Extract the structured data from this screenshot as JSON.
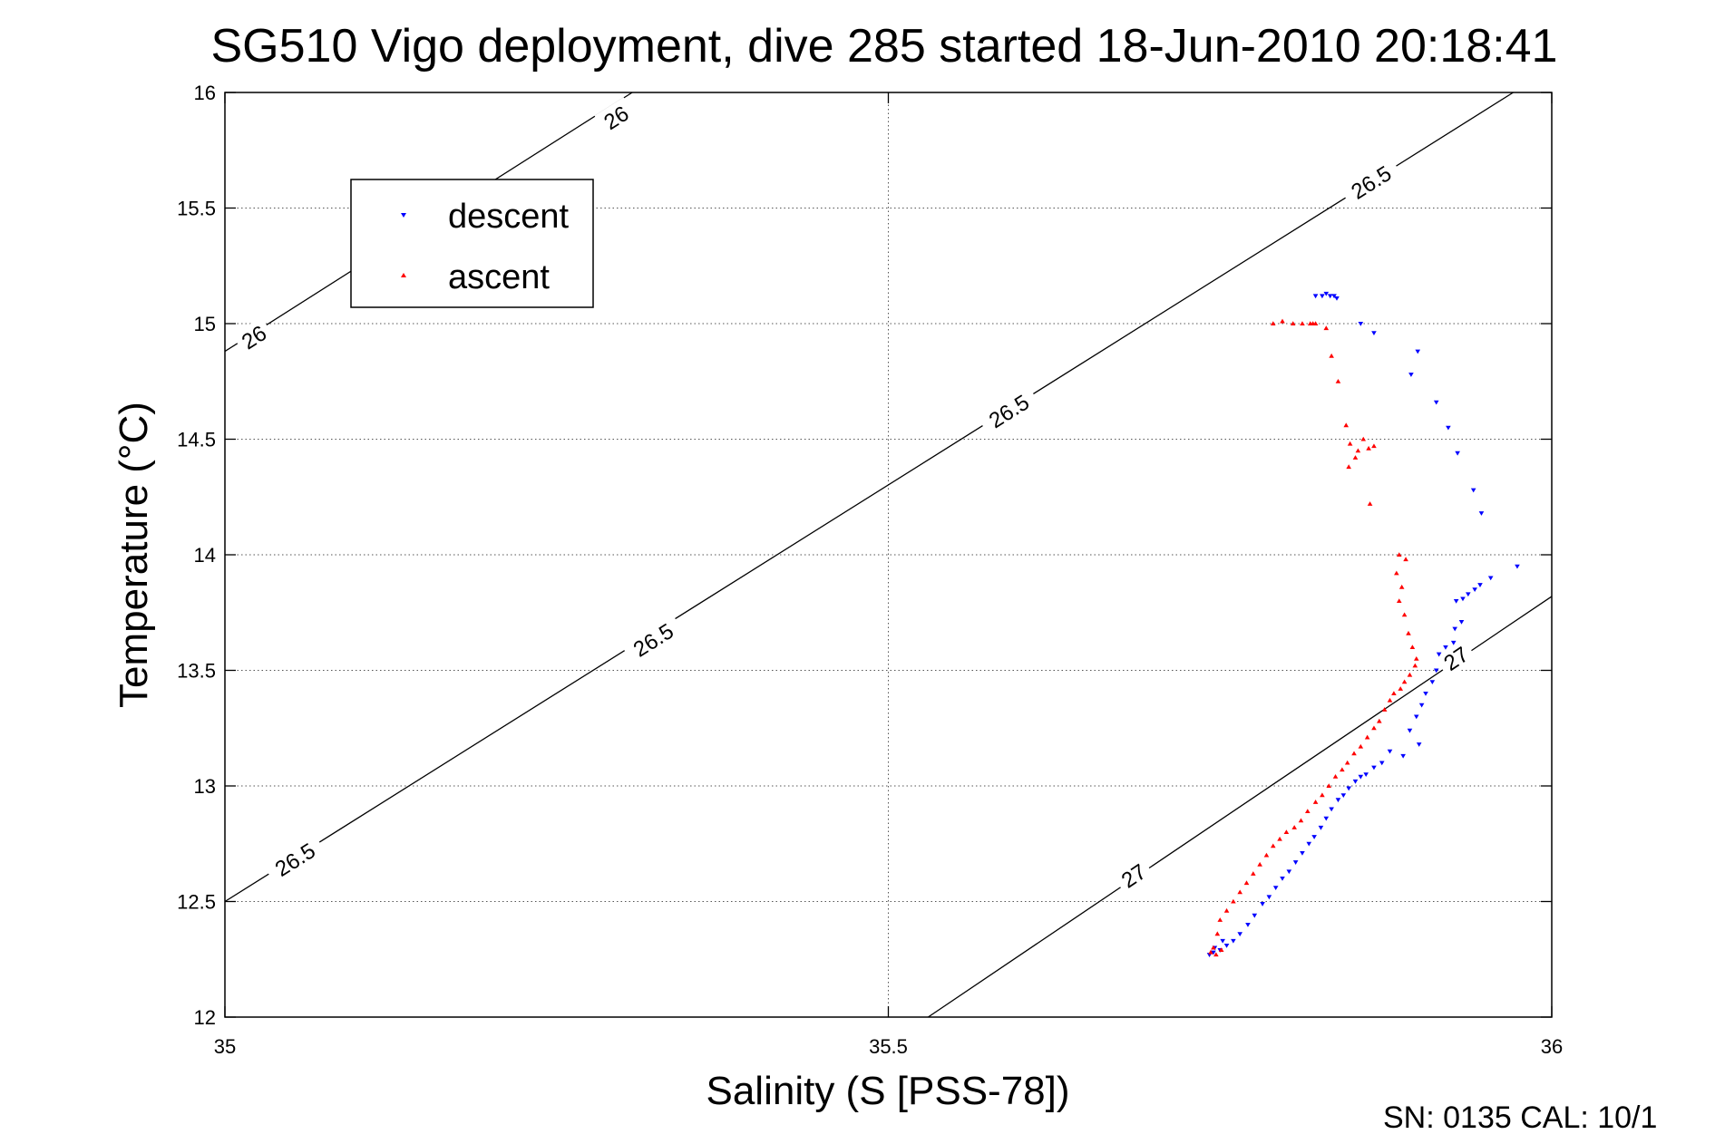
{
  "chart_data": {
    "type": "scatter",
    "title": "SG510 Vigo deployment, dive 285 started 18-Jun-2010 20:18:41",
    "xlabel": "Salinity (S [PSS-78])",
    "ylabel": "Temperature (°C)",
    "xlim": [
      35,
      36
    ],
    "ylim": [
      12,
      16
    ],
    "xticks": [
      35,
      35.5,
      36
    ],
    "xtick_labels": [
      "35",
      "35.5",
      "36"
    ],
    "yticks": [
      12,
      12.5,
      13,
      13.5,
      14,
      14.5,
      15,
      15.5,
      16
    ],
    "ytick_labels": [
      "12",
      "12.5",
      "13",
      "13.5",
      "14",
      "14.5",
      "15",
      "15.5",
      "16"
    ],
    "grid": true,
    "legend_position": "top-left",
    "footer": "SN: 0135  CAL: 10/1",
    "contours": [
      {
        "level": 26,
        "label": "26",
        "points": [
          [
            35.0,
            14.88
          ],
          [
            35.307,
            16.0
          ]
        ],
        "label_positions": [
          [
            35.022,
            14.94
          ],
          [
            35.295,
            15.89
          ]
        ]
      },
      {
        "level": 26.5,
        "label": "26.5",
        "points": [
          [
            35.0,
            12.5
          ],
          [
            35.971,
            16.0
          ]
        ],
        "label_positions": [
          [
            35.053,
            12.68
          ],
          [
            35.323,
            13.63
          ],
          [
            35.591,
            14.62
          ],
          [
            35.864,
            15.61
          ]
        ]
      },
      {
        "level": 27,
        "label": "27",
        "points": [
          [
            35.53,
            12.0
          ],
          [
            36.0,
            13.82
          ]
        ],
        "label_positions": [
          [
            35.685,
            12.61
          ],
          [
            35.928,
            13.55
          ]
        ]
      }
    ],
    "series": [
      {
        "name": "descent",
        "color": "#0000ff",
        "marker": "triangle-down",
        "points": [
          [
            35.827,
            15.12
          ],
          [
            35.83,
            15.13
          ],
          [
            35.833,
            15.12
          ],
          [
            35.836,
            15.12
          ],
          [
            35.822,
            15.12
          ],
          [
            35.838,
            15.11
          ],
          [
            35.856,
            15.0
          ],
          [
            35.866,
            14.96
          ],
          [
            35.899,
            14.88
          ],
          [
            35.894,
            14.78
          ],
          [
            35.913,
            14.66
          ],
          [
            35.922,
            14.55
          ],
          [
            35.929,
            14.44
          ],
          [
            35.941,
            14.28
          ],
          [
            35.947,
            14.18
          ],
          [
            35.974,
            13.95
          ],
          [
            35.954,
            13.9
          ],
          [
            35.946,
            13.87
          ],
          [
            35.942,
            13.85
          ],
          [
            35.937,
            13.83
          ],
          [
            35.933,
            13.81
          ],
          [
            35.928,
            13.8
          ],
          [
            35.932,
            13.71
          ],
          [
            35.927,
            13.68
          ],
          [
            35.926,
            13.62
          ],
          [
            35.92,
            13.6
          ],
          [
            35.915,
            13.57
          ],
          [
            35.913,
            13.5
          ],
          [
            35.91,
            13.45
          ],
          [
            35.905,
            13.4
          ],
          [
            35.902,
            13.35
          ],
          [
            35.898,
            13.3
          ],
          [
            35.893,
            13.24
          ],
          [
            35.9,
            13.18
          ],
          [
            35.888,
            13.13
          ],
          [
            35.878,
            13.15
          ],
          [
            35.872,
            13.1
          ],
          [
            35.866,
            13.08
          ],
          [
            35.86,
            13.05
          ],
          [
            35.856,
            13.04
          ],
          [
            35.852,
            13.02
          ],
          [
            35.847,
            12.99
          ],
          [
            35.843,
            12.96
          ],
          [
            35.839,
            12.94
          ],
          [
            35.834,
            12.9
          ],
          [
            35.83,
            12.86
          ],
          [
            35.826,
            12.82
          ],
          [
            35.821,
            12.78
          ],
          [
            35.817,
            12.75
          ],
          [
            35.812,
            12.71
          ],
          [
            35.807,
            12.67
          ],
          [
            35.802,
            12.63
          ],
          [
            35.797,
            12.6
          ],
          [
            35.792,
            12.56
          ],
          [
            35.787,
            12.52
          ],
          [
            35.782,
            12.49
          ],
          [
            35.776,
            12.44
          ],
          [
            35.771,
            12.4
          ],
          [
            35.765,
            12.36
          ],
          [
            35.76,
            12.33
          ],
          [
            35.755,
            12.31
          ],
          [
            35.75,
            12.29
          ],
          [
            35.745,
            12.28
          ],
          [
            35.742,
            12.27
          ],
          [
            35.746,
            12.3
          ],
          [
            35.752,
            12.33
          ]
        ]
      },
      {
        "name": "ascent",
        "color": "#ff0000",
        "marker": "triangle-up",
        "points": [
          [
            35.82,
            15.0
          ],
          [
            35.822,
            15.0
          ],
          [
            35.818,
            15.0
          ],
          [
            35.812,
            15.0
          ],
          [
            35.805,
            15.0
          ],
          [
            35.797,
            15.01
          ],
          [
            35.79,
            15.0
          ],
          [
            35.83,
            14.98
          ],
          [
            35.834,
            14.86
          ],
          [
            35.839,
            14.75
          ],
          [
            35.845,
            14.56
          ],
          [
            35.848,
            14.48
          ],
          [
            35.854,
            14.45
          ],
          [
            35.858,
            14.5
          ],
          [
            35.862,
            14.46
          ],
          [
            35.866,
            14.47
          ],
          [
            35.852,
            14.42
          ],
          [
            35.847,
            14.38
          ],
          [
            35.863,
            14.22
          ],
          [
            35.885,
            14.0
          ],
          [
            35.89,
            13.98
          ],
          [
            35.883,
            13.92
          ],
          [
            35.887,
            13.86
          ],
          [
            35.885,
            13.8
          ],
          [
            35.889,
            13.74
          ],
          [
            35.892,
            13.66
          ],
          [
            35.895,
            13.6
          ],
          [
            35.898,
            13.55
          ],
          [
            35.897,
            13.52
          ],
          [
            35.893,
            13.48
          ],
          [
            35.889,
            13.45
          ],
          [
            35.886,
            13.42
          ],
          [
            35.881,
            13.4
          ],
          [
            35.878,
            13.37
          ],
          [
            35.874,
            13.33
          ],
          [
            35.87,
            13.28
          ],
          [
            35.866,
            13.25
          ],
          [
            35.861,
            13.21
          ],
          [
            35.856,
            13.17
          ],
          [
            35.851,
            13.14
          ],
          [
            35.846,
            13.1
          ],
          [
            35.842,
            13.07
          ],
          [
            35.837,
            13.04
          ],
          [
            35.832,
            13.0
          ],
          [
            35.827,
            12.96
          ],
          [
            35.822,
            12.93
          ],
          [
            35.816,
            12.89
          ],
          [
            35.811,
            12.85
          ],
          [
            35.806,
            12.82
          ],
          [
            35.8,
            12.8
          ],
          [
            35.795,
            12.77
          ],
          [
            35.79,
            12.74
          ],
          [
            35.785,
            12.7
          ],
          [
            35.78,
            12.66
          ],
          [
            35.775,
            12.62
          ],
          [
            35.77,
            12.58
          ],
          [
            35.765,
            12.54
          ],
          [
            35.76,
            12.5
          ],
          [
            35.755,
            12.46
          ],
          [
            35.75,
            12.42
          ],
          [
            35.748,
            12.36
          ],
          [
            35.745,
            12.3
          ],
          [
            35.743,
            12.28
          ],
          [
            35.747,
            12.27
          ],
          [
            35.751,
            12.29
          ]
        ]
      }
    ]
  }
}
